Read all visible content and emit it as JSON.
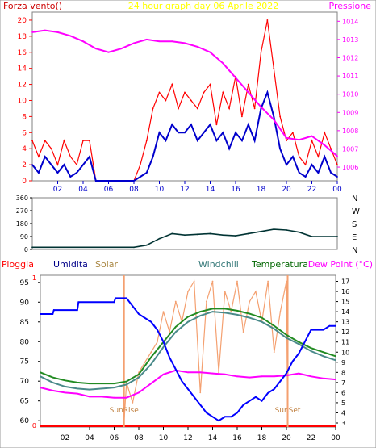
{
  "chart_data": [
    {
      "type": "line",
      "title": "24 hour graph day   06 Aprile 2022",
      "left_axis_label": "Forza vento()",
      "right_axis_label": "Pressione",
      "left_ylim": [
        0,
        21
      ],
      "left_ticks": [
        "0",
        "2",
        "4",
        "6",
        "8",
        "10",
        "12",
        "14",
        "16",
        "18",
        "20"
      ],
      "right_ylim": [
        1005.25,
        1014.5
      ],
      "right_ticks": [
        "1006",
        "1007",
        "1008",
        "1009",
        "1010",
        "1011",
        "1012",
        "1013",
        "1014"
      ],
      "x_ticks": [
        "02",
        "04",
        "06",
        "08",
        "10",
        "12",
        "14",
        "16",
        "18",
        "20",
        "22",
        "00"
      ],
      "colors": {
        "gust": "#ff0000",
        "wind": "#0000cc",
        "pressure": "#ff00ff",
        "title": "#ffff00"
      },
      "series": [
        {
          "key": "pressure",
          "axis": "right",
          "x": [
            0,
            1,
            2,
            3,
            4,
            5,
            6,
            7,
            8,
            9,
            10,
            11,
            12,
            13,
            14,
            15,
            16,
            17,
            18,
            19,
            20,
            21,
            22,
            23,
            24
          ],
          "values": [
            1013.4,
            1013.5,
            1013.4,
            1013.2,
            1012.9,
            1012.5,
            1012.3,
            1012.5,
            1012.8,
            1013.0,
            1012.9,
            1012.9,
            1012.8,
            1012.6,
            1012.3,
            1011.7,
            1010.9,
            1010.1,
            1009.3,
            1008.6,
            1007.6,
            1007.5,
            1007.7,
            1007.2,
            1006.6
          ]
        },
        {
          "key": "wind",
          "axis": "left",
          "x": [
            0,
            0.5,
            1,
            1.5,
            2,
            2.5,
            3,
            3.5,
            4,
            4.5,
            5,
            6,
            7,
            8,
            8.5,
            9,
            9.5,
            10,
            10.5,
            11,
            11.5,
            12,
            12.5,
            13,
            13.5,
            14,
            14.5,
            15,
            15.5,
            16,
            16.5,
            17,
            17.5,
            18,
            18.5,
            19,
            19.5,
            20,
            20.5,
            21,
            21.5,
            22,
            22.5,
            23,
            23.5,
            24
          ],
          "values": [
            2,
            1,
            3,
            2,
            1,
            2,
            0.5,
            1,
            2,
            3,
            0,
            0,
            0,
            0,
            0.5,
            1,
            3,
            6,
            5,
            7,
            6,
            6,
            7,
            5,
            6,
            7,
            5,
            6,
            4,
            6,
            5,
            7,
            5,
            9,
            11,
            8,
            4,
            2,
            3,
            1,
            0.5,
            2,
            1,
            3,
            1,
            0.5
          ]
        },
        {
          "key": "gust",
          "axis": "left",
          "x": [
            0,
            0.5,
            1,
            1.5,
            2,
            2.5,
            3,
            3.5,
            4,
            4.5,
            5,
            6,
            7,
            8,
            8.5,
            9,
            9.5,
            10,
            10.5,
            11,
            11.5,
            12,
            12.5,
            13,
            13.5,
            14,
            14.5,
            15,
            15.5,
            16,
            16.5,
            17,
            17.5,
            18,
            18.5,
            19,
            19.5,
            20,
            20.5,
            21,
            21.5,
            22,
            22.5,
            23,
            23.5,
            24
          ],
          "values": [
            5,
            3,
            5,
            4,
            2,
            5,
            3,
            2,
            5,
            5,
            0,
            0,
            0,
            0,
            2,
            5,
            9,
            11,
            10,
            12,
            9,
            11,
            10,
            9,
            11,
            12,
            7,
            11,
            9,
            13,
            8,
            12,
            9,
            16,
            20,
            14,
            8,
            5,
            6,
            3,
            2,
            5,
            3,
            6,
            4,
            2
          ]
        }
      ]
    },
    {
      "type": "line",
      "title": "",
      "right_labels": [
        "N",
        "W",
        "S",
        "E",
        "N"
      ],
      "left_ticks": [
        "0",
        "90",
        "180",
        "270",
        "360"
      ],
      "ylim": [
        0,
        360
      ],
      "colors": {
        "dir": "#003333"
      },
      "series": [
        {
          "key": "dir",
          "x": [
            0,
            8,
            9,
            10,
            11,
            12,
            13,
            14,
            15,
            16,
            17,
            18,
            19,
            20,
            21,
            22,
            24
          ],
          "values": [
            15,
            15,
            30,
            75,
            110,
            100,
            105,
            110,
            100,
            95,
            110,
            125,
            140,
            135,
            120,
            90,
            90
          ]
        }
      ]
    },
    {
      "type": "line",
      "title": "",
      "labels": {
        "rain": "Pioggia",
        "hum": "Umidita",
        "solar": "Solar",
        "chill": "Windchill",
        "temp": "Temperatura",
        "dew": "Dew Point (°C)"
      },
      "left_ylim": [
        58.4,
        96.8
      ],
      "left_ticks": [
        "60",
        "65",
        "70",
        "75",
        "80",
        "85",
        "90",
        "95"
      ],
      "right_ylim": [
        2.6,
        17.6
      ],
      "right_ticks": [
        "3",
        "4",
        "5",
        "6",
        "7",
        "8",
        "9",
        "10",
        "11",
        "12",
        "13",
        "14",
        "15",
        "16",
        "17"
      ],
      "rain_ticks": [
        "0",
        "1"
      ],
      "x_ticks": [
        "02",
        "04",
        "06",
        "08",
        "10",
        "12",
        "14",
        "16",
        "18",
        "20",
        "22",
        "00"
      ],
      "sunrise_label": "SunRise",
      "sunset_label": "SunSet",
      "sunrise_x": 6.8,
      "sunset_x": 20.1,
      "colors": {
        "hum": "#0000ff",
        "solar": "#f4a070",
        "chill": "#4a8a8a",
        "temp": "#228b22",
        "dew": "#ff00ff",
        "rain": "#ff0000",
        "sun": "#f4a070"
      },
      "series": [
        {
          "key": "hum",
          "axis": "left",
          "x": [
            0,
            1,
            1.1,
            3,
            3.1,
            6,
            6.1,
            7,
            7.5,
            8,
            9,
            9.5,
            10,
            10.5,
            11,
            11.5,
            12,
            12.5,
            13,
            13.5,
            14,
            14.5,
            15,
            15.5,
            16,
            16.5,
            17,
            17.5,
            18,
            18.5,
            19,
            19.5,
            20,
            20.5,
            21,
            21.5,
            22,
            23,
            23.5,
            24
          ],
          "values": [
            87,
            87,
            88,
            88,
            90,
            90,
            91,
            91,
            89,
            87,
            85,
            83,
            80,
            76,
            73,
            70,
            68,
            66,
            64,
            62,
            61,
            60,
            61,
            61,
            62,
            64,
            65,
            66,
            65,
            67,
            68,
            70,
            72,
            75,
            77,
            80,
            83,
            83,
            84,
            84
          ]
        },
        {
          "key": "temp",
          "axis": "right",
          "x": [
            0,
            1,
            2,
            3,
            4,
            5,
            6,
            7,
            8,
            9,
            10,
            11,
            12,
            13,
            14,
            15,
            16,
            17,
            18,
            19,
            20,
            21,
            22,
            23,
            24
          ],
          "values": [
            8.0,
            7.5,
            7.2,
            7.0,
            6.9,
            6.9,
            6.9,
            7.1,
            7.8,
            9.5,
            11.0,
            12.5,
            13.5,
            14.0,
            14.3,
            14.3,
            14.1,
            13.8,
            13.4,
            12.6,
            11.7,
            11.0,
            10.4,
            10.0,
            9.6
          ]
        },
        {
          "key": "chill",
          "axis": "right",
          "x": [
            0,
            1,
            2,
            3,
            4,
            5,
            6,
            7,
            8,
            9,
            10,
            11,
            12,
            13,
            14,
            15,
            16,
            17,
            18,
            19,
            20,
            21,
            22,
            23,
            24
          ],
          "values": [
            7.6,
            7.0,
            6.6,
            6.4,
            6.3,
            6.4,
            6.5,
            6.8,
            7.5,
            8.8,
            10.5,
            12.0,
            13.0,
            13.6,
            14.0,
            13.9,
            13.7,
            13.4,
            13.0,
            12.3,
            11.4,
            10.8,
            10.1,
            9.6,
            9.2
          ]
        },
        {
          "key": "dew",
          "axis": "right",
          "x": [
            0,
            1,
            2,
            3,
            4,
            5,
            6,
            7,
            8,
            9,
            10,
            11,
            12,
            13,
            14,
            15,
            16,
            17,
            18,
            19,
            20,
            21,
            22,
            23,
            24
          ],
          "values": [
            6.5,
            6.2,
            6.0,
            5.9,
            5.6,
            5.6,
            5.5,
            5.5,
            6.0,
            6.9,
            7.8,
            8.2,
            8.0,
            8.0,
            7.9,
            7.8,
            7.6,
            7.5,
            7.6,
            7.6,
            7.7,
            7.9,
            7.6,
            7.4,
            7.3
          ]
        },
        {
          "key": "solar",
          "axis": "right",
          "x": [
            6.8,
            7,
            7.5,
            8,
            8.5,
            9,
            9.5,
            10,
            10.5,
            11,
            11.5,
            12,
            12.5,
            13,
            13.5,
            14,
            14.5,
            15,
            15.5,
            16,
            16.5,
            17,
            17.5,
            18,
            18.5,
            19,
            19.5,
            20,
            20.1
          ],
          "values": [
            3,
            7,
            5,
            8,
            9,
            10,
            11,
            14,
            12,
            15,
            13,
            16,
            17,
            6,
            15,
            17,
            8,
            16,
            14,
            17,
            12,
            15,
            16,
            13,
            17,
            10,
            14,
            17,
            3
          ]
        }
      ]
    }
  ]
}
